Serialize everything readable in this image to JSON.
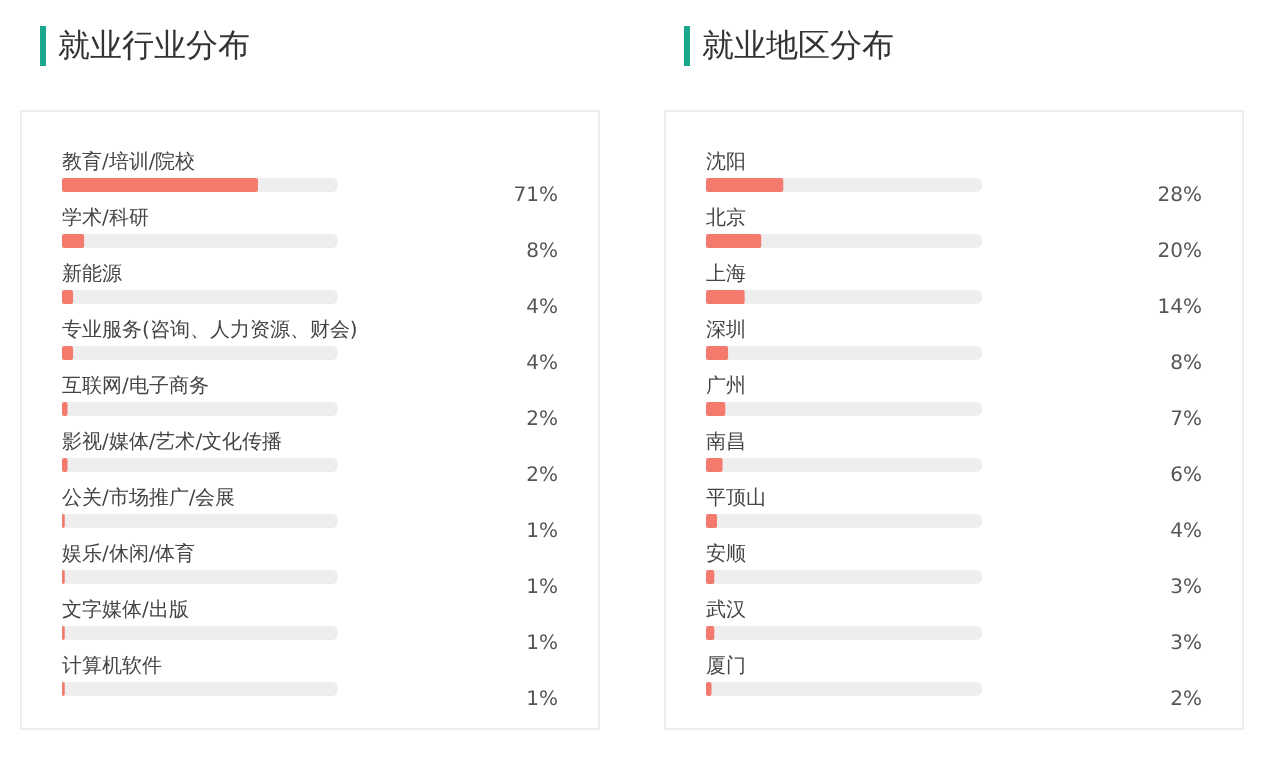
{
  "chart_data": [
    {
      "type": "bar",
      "orientation": "horizontal",
      "title": "就业行业分布",
      "categories": [
        "教育/培训/院校",
        "学术/科研",
        "新能源",
        "专业服务(咨询、人力资源、财会)",
        "互联网/电子商务",
        "影视/媒体/艺术/文化传播",
        "公关/市场推广/会展",
        "娱乐/休闲/体育",
        "文字媒体/出版",
        "计算机软件"
      ],
      "values": [
        71,
        8,
        4,
        4,
        2,
        2,
        1,
        1,
        1,
        1
      ],
      "value_labels": [
        "71%",
        "8%",
        "4%",
        "4%",
        "2%",
        "2%",
        "1%",
        "1%",
        "1%",
        "1%"
      ],
      "color": "#f47a6e",
      "xlim": [
        0,
        100
      ],
      "tick_labels": "y"
    },
    {
      "type": "bar",
      "orientation": "horizontal",
      "title": "就业地区分布",
      "categories": [
        "沈阳",
        "北京",
        "上海",
        "深圳",
        "广州",
        "南昌",
        "平顶山",
        "安顺",
        "武汉",
        "厦门"
      ],
      "values": [
        28,
        20,
        14,
        8,
        7,
        6,
        4,
        3,
        3,
        2
      ],
      "value_labels": [
        "28%",
        "20%",
        "14%",
        "8%",
        "7%",
        "6%",
        "4%",
        "3%",
        "3%",
        "2%"
      ],
      "color": "#f47a6e",
      "xlim": [
        0,
        100
      ],
      "tick_labels": "y"
    }
  ]
}
